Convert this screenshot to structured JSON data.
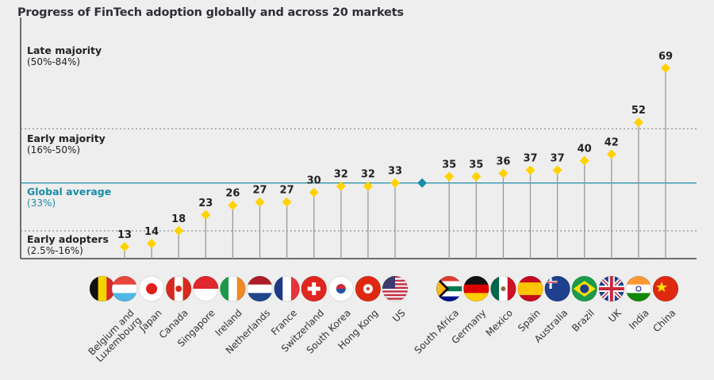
{
  "chart_data": {
    "type": "lollipop",
    "title": "Progress of FinTech adoption globally and across 20 markets",
    "bands": [
      {
        "label": "Late majority",
        "range": "(50%-84%)"
      },
      {
        "label": "Early majority",
        "range": "(16%-50%)"
      },
      {
        "label": "Global average",
        "range": "(33%)"
      },
      {
        "label": "Early adopters",
        "range": "(2.5%-16%)"
      }
    ],
    "thresholds": [
      16,
      50
    ],
    "global_average": 33,
    "categories": [
      "Belgium and Luxembourg",
      "Japan",
      "Canada",
      "Singapore",
      "Ireland",
      "Netherlands",
      "France",
      "Switzerland",
      "South Korea",
      "Hong Kong",
      "US",
      "South Africa",
      "Germany",
      "Mexico",
      "Spain",
      "Australia",
      "Brazil",
      "UK",
      "India",
      "China"
    ],
    "values": [
      13,
      14,
      18,
      23,
      26,
      27,
      27,
      30,
      32,
      32,
      33,
      35,
      35,
      36,
      37,
      37,
      40,
      42,
      52,
      69
    ],
    "flags": [
      [
        "belgium-flag",
        "luxembourg-flag"
      ],
      [
        "japan-flag"
      ],
      [
        "canada-flag"
      ],
      [
        "singapore-flag"
      ],
      [
        "ireland-flag"
      ],
      [
        "netherlands-flag"
      ],
      [
        "france-flag"
      ],
      [
        "switzerland-flag"
      ],
      [
        "south-korea-flag"
      ],
      [
        "hong-kong-flag"
      ],
      [
        "us-flag"
      ],
      [
        "south-africa-flag"
      ],
      [
        "germany-flag"
      ],
      [
        "mexico-flag"
      ],
      [
        "spain-flag"
      ],
      [
        "australia-flag"
      ],
      [
        "brazil-flag"
      ],
      [
        "uk-flag"
      ],
      [
        "india-flag"
      ],
      [
        "china-flag"
      ]
    ],
    "colors": {
      "marker": "#ffd200",
      "average": "#1a8ca8",
      "stem": "#999999"
    }
  }
}
